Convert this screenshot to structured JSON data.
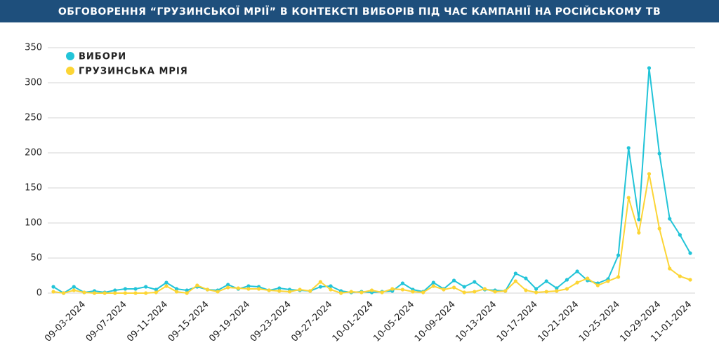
{
  "chart_data": {
    "type": "line",
    "title": "ОБГОВОРЕННЯ “ГРУЗИНСЬКОЇ МРІЇ” В КОНТЕКСТІ ВИБОРІВ ПІД ЧАС КАМПАНІЇ НА РОСІЙСЬКОМУ ТВ",
    "categories": [
      null,
      null,
      null,
      "09-03-2024",
      null,
      null,
      null,
      "09-07-2024",
      null,
      null,
      null,
      "09-11-2024",
      null,
      null,
      null,
      "09-15-2024",
      null,
      null,
      null,
      "09-19-2024",
      null,
      null,
      null,
      "09-23-2024",
      null,
      null,
      null,
      "09-27-2024",
      null,
      null,
      null,
      "10-01-2024",
      null,
      null,
      null,
      "10-05-2024",
      null,
      null,
      null,
      "10-09-2024",
      null,
      null,
      null,
      "10-13-2024",
      null,
      null,
      null,
      "10-17-2024",
      null,
      null,
      null,
      "10-21-2024",
      null,
      null,
      null,
      "10-25-2024",
      null,
      null,
      null,
      "10-29-2024",
      null,
      null,
      "11-01-2024"
    ],
    "series": [
      {
        "name": "ВИБОРИ",
        "color": "#22c4d8",
        "values": [
          9,
          0,
          9,
          1,
          3,
          1,
          4,
          6,
          6,
          9,
          5,
          15,
          6,
          4,
          9,
          5,
          4,
          12,
          6,
          10,
          9,
          4,
          7,
          5,
          4,
          3,
          9,
          10,
          3,
          1,
          2,
          1,
          2,
          3,
          14,
          5,
          2,
          15,
          6,
          18,
          9,
          16,
          5,
          4,
          3,
          28,
          21,
          6,
          17,
          7,
          19,
          31,
          18,
          14,
          20,
          54,
          207,
          105,
          321,
          199,
          106,
          83,
          57
        ]
      },
      {
        "name": "ГРУЗИНСЬКА МРІЯ",
        "color": "#fcd535",
        "values": [
          2,
          0,
          4,
          1,
          0,
          0,
          0,
          0,
          0,
          0,
          1,
          10,
          2,
          0,
          11,
          5,
          2,
          8,
          7,
          6,
          6,
          4,
          3,
          2,
          5,
          3,
          16,
          5,
          0,
          2,
          1,
          4,
          1,
          6,
          5,
          2,
          1,
          10,
          5,
          8,
          1,
          2,
          6,
          2,
          3,
          17,
          4,
          1,
          2,
          3,
          6,
          15,
          21,
          11,
          17,
          23,
          136,
          86,
          170,
          92,
          35,
          24,
          19
        ]
      }
    ],
    "ylim": [
      0,
      350
    ],
    "yticks": [
      0,
      50,
      100,
      150,
      200,
      250,
      300,
      350
    ],
    "grid": true,
    "legend": "top-left"
  }
}
